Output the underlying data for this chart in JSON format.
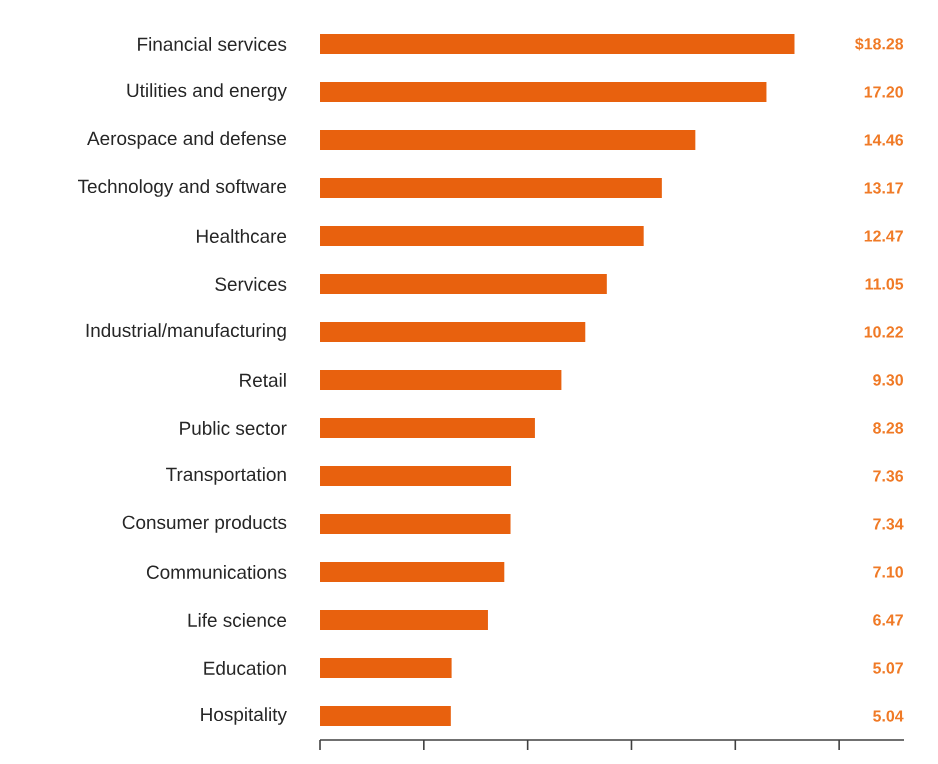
{
  "chart_data": {
    "type": "bar",
    "orientation": "horizontal",
    "categories": [
      "Financial services",
      "Utilities and energy",
      "Aerospace and defense",
      "Technology and software",
      "Healthcare",
      "Services",
      "Industrial/manufacturing",
      "Retail",
      "Public sector",
      "Transportation",
      "Consumer products",
      "Communications",
      "Life science",
      "Education",
      "Hospitality"
    ],
    "values": [
      18.28,
      17.2,
      14.46,
      13.17,
      12.47,
      11.05,
      10.22,
      9.3,
      8.28,
      7.36,
      7.34,
      7.1,
      6.47,
      5.07,
      5.04
    ],
    "value_labels": [
      "$18.28",
      "17.20",
      "14.46",
      "13.17",
      "12.47",
      "11.05",
      "10.22",
      "9.30",
      "8.28",
      "7.36",
      "7.34",
      "7.10",
      "6.47",
      "5.07",
      "5.04"
    ],
    "color": "#e8610e",
    "xlim": [
      0,
      22.5
    ],
    "xticks": [
      {
        "value": 0,
        "label": null
      },
      {
        "value": 4,
        "label": null
      },
      {
        "value": 8,
        "label": null
      },
      {
        "value": 12,
        "label": null
      },
      {
        "value": 16,
        "label": null
      },
      {
        "value": 20,
        "label": null
      }
    ],
    "tick_labels": "y"
  }
}
